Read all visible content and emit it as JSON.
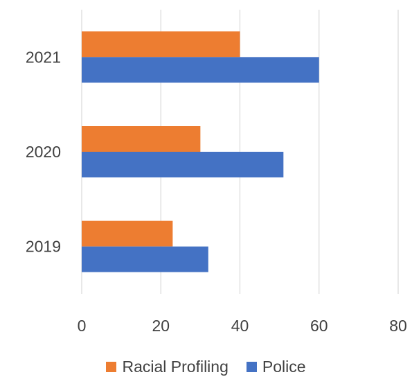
{
  "chart_data": {
    "type": "bar",
    "orientation": "horizontal",
    "categories": [
      "2019",
      "2020",
      "2021"
    ],
    "series": [
      {
        "name": "Racial Profiling",
        "color": "#ED7D31",
        "values": [
          23,
          30,
          40
        ]
      },
      {
        "name": "Police",
        "color": "#4472C4",
        "values": [
          32,
          51,
          60
        ]
      }
    ],
    "xlim": [
      0,
      80
    ],
    "xticks": [
      "0",
      "20",
      "40",
      "60",
      "80"
    ],
    "grid": "vertical",
    "legend_position": "bottom"
  }
}
